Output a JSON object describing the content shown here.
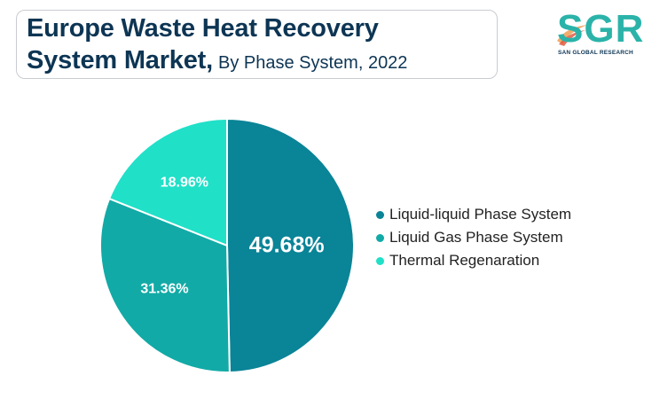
{
  "header": {
    "title_line1": "Europe Waste Heat Recovery",
    "title_line2": "System Market,",
    "subtitle": "By Phase System, 2022"
  },
  "logo": {
    "text": "SGR",
    "subtext": "SAN GLOBAL RESEARCH",
    "color": "#2bb3a9"
  },
  "chart_data": {
    "type": "pie",
    "title": "Europe Waste Heat Recovery System Market, By Phase System, 2022",
    "legend_position": "right",
    "slices": [
      {
        "name": "Liquid-liquid Phase System",
        "value": 49.68,
        "label": "49.68%",
        "color": "#0a8497"
      },
      {
        "name": "Liquid Gas Phase System",
        "value": 31.36,
        "label": "31.36%",
        "color": "#12aaa6"
      },
      {
        "name": "Thermal Regenaration",
        "value": 18.96,
        "label": "18.96%",
        "color": "#20e0c8"
      }
    ]
  }
}
